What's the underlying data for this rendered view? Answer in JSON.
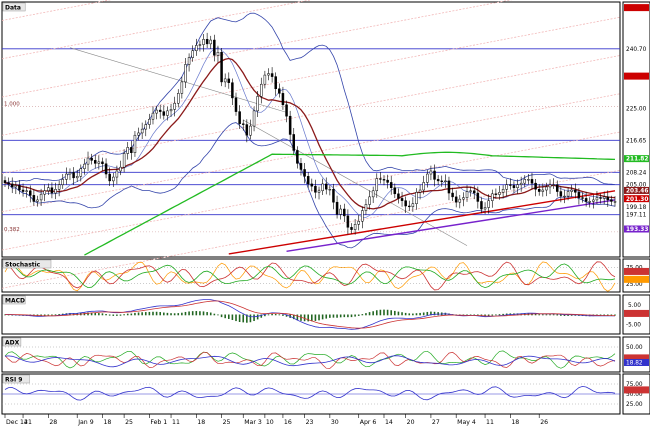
{
  "colors": {
    "background": "#ffffff",
    "frame": "#000000",
    "hline": "#3333cc",
    "channel": "#f2b8b8",
    "ma_red": "#8b1a1a",
    "ma_green": "#22bb22",
    "band": "#3344aa",
    "stoch_fast": "#cc3333",
    "stoch_slow": "#22aa22",
    "stoch_k": "#ff9900",
    "macd_line": "#3333cc",
    "macd_signal": "#cc3333",
    "macd_hist": "#226622",
    "adx_plus": "#22aa22",
    "adx_minus": "#cc3333",
    "adx_line": "#3333cc",
    "rsi": "#3333cc",
    "trend_red": "#cc0000",
    "trend_purple": "#7722cc"
  },
  "chart_data": [
    {
      "type": "candlestick",
      "title": "Data",
      "x_labels": [
        "Dec 14",
        "21",
        "28",
        "Jan 9",
        "18",
        "25",
        "Feb 1",
        "11",
        "18",
        "25",
        "Mar 3",
        "10",
        "16",
        "23",
        "30",
        "Apr 6",
        "14",
        "20",
        "27",
        "May 4",
        "11",
        "18",
        "26"
      ],
      "price_labels": [
        "240.70",
        "225.00",
        "216.65",
        "208.24",
        "205.00",
        "199.18",
        "197.11"
      ],
      "highlighted_price_labels": [
        {
          "label": "",
          "color": "#cc0000"
        },
        {
          "label": "",
          "color": "#cc0000"
        },
        {
          "label": "211.82",
          "color": "#22bb22"
        },
        {
          "label": "203.46",
          "color": "#8b1a1a"
        },
        {
          "label": "201.30",
          "color": "#cc0000"
        },
        {
          "label": "193.33",
          "color": "#7722cc"
        }
      ],
      "fib_labels": [
        "1.000",
        "0.382"
      ],
      "horizontal_levels": [
        240.7,
        216.65,
        208.24,
        205.0,
        197.11
      ],
      "ylim": [
        186,
        253
      ],
      "series": {
        "close": [
          205.5,
          205.2,
          204.4,
          204.8,
          203.6,
          203.2,
          203.4,
          202.2,
          200.6,
          201.0,
          202.5,
          203.4,
          204.2,
          202.8,
          203.8,
          205.0,
          206.4,
          207.8,
          208.2,
          206.8,
          207.2,
          209.2,
          210.4,
          212.0,
          211.4,
          210.6,
          211.0,
          210.5,
          207.8,
          206.0,
          207.0,
          208.6,
          209.6,
          213.2,
          214.8,
          213.4,
          218.0,
          218.6,
          219.6,
          220.8,
          222.2,
          223.8,
          224.6,
          224.2,
          223.2,
          224.4,
          224.8,
          226.4,
          229.0,
          232.0,
          236.6,
          238.4,
          240.2,
          241.6,
          241.8,
          243.2,
          242.0,
          243.0,
          239.0,
          239.8,
          232.0,
          232.8,
          231.8,
          227.8,
          224.2,
          221.0,
          220.8,
          218.0,
          220.4,
          224.4,
          228.2,
          231.4,
          233.8,
          234.2,
          233.4,
          230.2,
          229.0,
          226.0,
          223.0,
          218.2,
          214.0,
          210.6,
          209.0,
          207.2,
          205.2,
          204.6,
          203.0,
          203.4,
          205.2,
          203.8,
          203.8,
          200.4,
          197.2,
          198.6,
          196.8,
          193.8,
          193.2,
          194.6,
          195.4,
          198.2,
          199.8,
          201.8,
          203.4,
          206.6,
          206.4,
          206.2,
          205.6,
          204.2,
          202.6,
          201.4,
          200.8,
          199.4,
          199.2,
          200.0,
          203.0,
          203.6,
          205.6,
          207.8,
          208.6,
          206.4,
          206.0,
          205.8,
          206.0,
          202.8,
          201.8,
          200.4,
          201.2,
          201.6,
          203.2,
          203.4,
          202.8,
          200.6,
          198.6,
          199.0,
          200.8,
          202.6,
          202.4,
          203.0,
          203.8,
          205.0,
          204.8,
          204.2,
          205.0,
          205.4,
          206.4,
          206.4,
          205.4,
          203.8,
          203.2,
          203.6,
          204.4,
          205.0,
          205.0,
          203.2,
          202.0,
          202.0,
          203.2,
          203.6,
          203.0,
          201.6,
          201.4,
          200.6,
          200.6,
          201.0,
          201.6,
          201.4,
          201.8,
          201.0,
          200.6,
          200.6
        ]
      }
    },
    {
      "type": "line",
      "title": "Stochastic",
      "levels": [
        "75.00",
        "25.00"
      ],
      "highlighted_values": [
        {
          "label": "",
          "color": "#cc3333"
        },
        {
          "label": "",
          "color": "#ff9900"
        }
      ],
      "ylim": [
        0,
        100
      ]
    },
    {
      "type": "line",
      "title": "MACD",
      "levels": [
        "5.00",
        "-5.00"
      ],
      "highlighted_values": [
        {
          "label": "",
          "color": "#cc3333"
        }
      ],
      "ylim": [
        -10,
        10
      ]
    },
    {
      "type": "line",
      "title": "ADX",
      "levels": [
        "50.00"
      ],
      "highlighted_values": [
        {
          "label": "",
          "color": "#cc3333"
        },
        {
          "label": "18.82",
          "color": "#3333cc"
        }
      ],
      "ylim": [
        0,
        70
      ]
    },
    {
      "type": "line",
      "title": "RSI 9",
      "levels": [
        "75.00",
        "50.00",
        "25.00"
      ],
      "highlighted_values": [
        {
          "label": "",
          "color": "#cc3333"
        }
      ],
      "ylim": [
        0,
        100
      ]
    }
  ]
}
